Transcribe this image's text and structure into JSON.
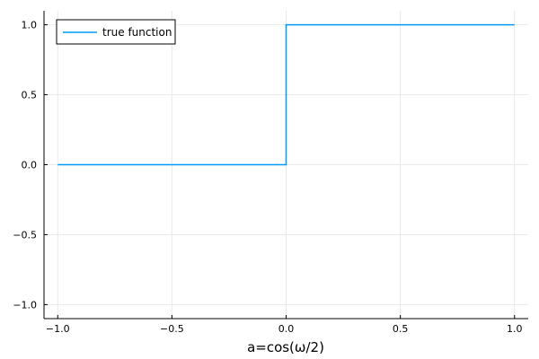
{
  "chart_data": {
    "type": "line",
    "title": "",
    "xlabel": "a=cos(ω/2)",
    "ylabel": "",
    "xlim": [
      -1.06,
      1.06
    ],
    "ylim": [
      -1.1,
      1.1
    ],
    "x_ticks": [
      -1.0,
      -0.5,
      0.0,
      0.5,
      1.0
    ],
    "x_tick_labels": [
      "−1.0",
      "−0.5",
      "0.0",
      "0.5",
      "1.0"
    ],
    "y_ticks": [
      -1.0,
      -0.5,
      0.0,
      0.5,
      1.0
    ],
    "y_tick_labels": [
      "−1.0",
      "−0.5",
      "0.0",
      "0.5",
      "1.0"
    ],
    "grid": true,
    "legend_position": "top-left",
    "series": [
      {
        "name": "true function",
        "color": "#009af9",
        "x": [
          -1.0,
          0.0,
          0.0,
          1.0
        ],
        "y": [
          0.0,
          0.0,
          1.0,
          1.0
        ]
      }
    ]
  }
}
